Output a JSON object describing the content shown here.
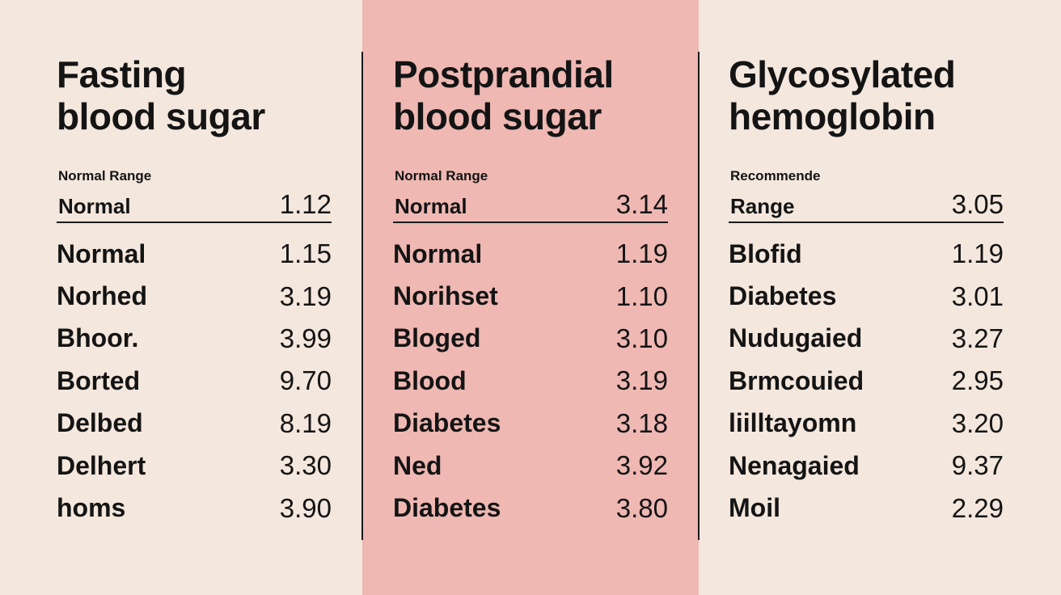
{
  "colors": {
    "background": "#f4e7dd",
    "middle_panel": "#efb8b3",
    "text": "#141414",
    "rule": "#1a1a1a"
  },
  "panels": [
    {
      "title_line1": "Fasting",
      "title_line2": "blood sugar",
      "subheading": "Normal Range",
      "header_label": "Normal",
      "header_value": "1.12",
      "rows": [
        {
          "label": "Normal",
          "value": "1.15"
        },
        {
          "label": "Norhed",
          "value": "3.19"
        },
        {
          "label": "Bhoor.",
          "value": "3.99"
        },
        {
          "label": "Borted",
          "value": "9.70"
        },
        {
          "label": "Delbed",
          "value": "8.19"
        },
        {
          "label": "Delhert",
          "value": "3.30"
        },
        {
          "label": "homs",
          "value": "3.90"
        }
      ]
    },
    {
      "title_line1": "Postprandial",
      "title_line2": "blood sugar",
      "subheading": "Normal Range",
      "header_label": "Normal",
      "header_value": "3.14",
      "rows": [
        {
          "label": "Normal",
          "value": "1.19"
        },
        {
          "label": "Norihset",
          "value": "1.10"
        },
        {
          "label": "Bloged",
          "value": "3.10"
        },
        {
          "label": "Blood",
          "value": "3.19"
        },
        {
          "label": "Diabetes",
          "value": "3.18"
        },
        {
          "label": "Ned",
          "value": "3.92"
        },
        {
          "label": "Diabetes",
          "value": "3.80"
        }
      ]
    },
    {
      "title_line1": "Glycosylated",
      "title_line2": "hemoglobin",
      "subheading": "Recommende",
      "header_label": "Range",
      "header_value": "3.05",
      "rows": [
        {
          "label": "Blofid",
          "value": "1.19"
        },
        {
          "label": "Diabetes",
          "value": "3.01"
        },
        {
          "label": "Nudugaied",
          "value": "3.27"
        },
        {
          "label": "Brmcouied",
          "value": "2.95"
        },
        {
          "label": "liilltayomn",
          "value": "3.20"
        },
        {
          "label": "Nenagaied",
          "value": "9.37"
        },
        {
          "label": "Moil",
          "value": "2.29"
        }
      ]
    }
  ]
}
